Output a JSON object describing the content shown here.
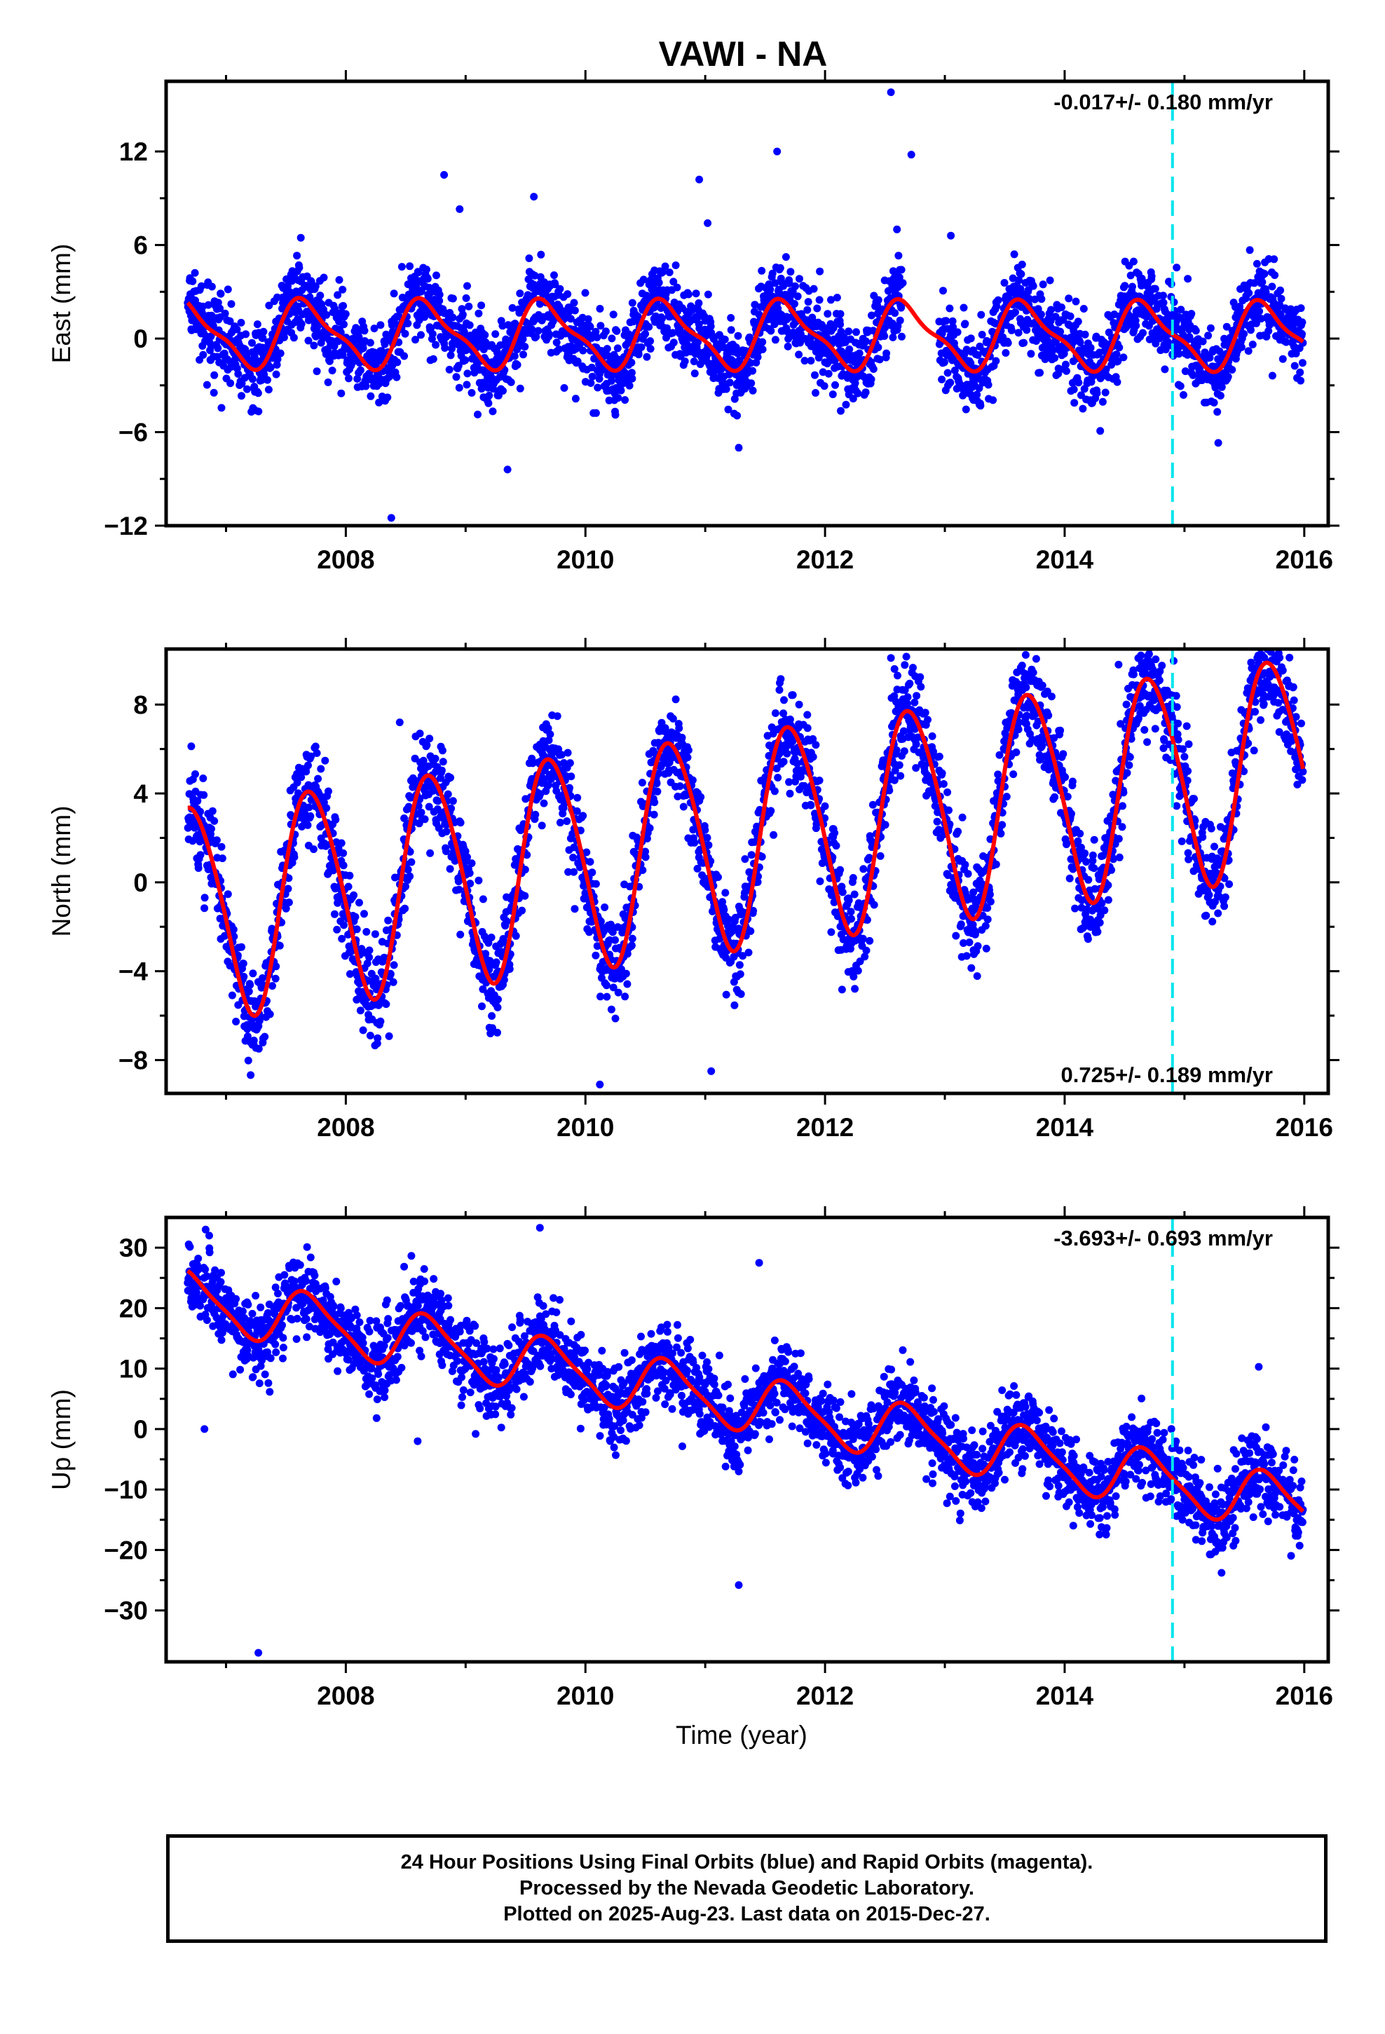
{
  "title": "VAWI - NA",
  "xlabel": "Time (year)",
  "colors": {
    "data": "#0000ff",
    "model": "#ff0000",
    "marker": "#00e5ee"
  },
  "caption": {
    "line1": "24 Hour Positions Using Final Orbits (blue) and Rapid Orbits (magenta).",
    "line2": "Processed by the Nevada Geodetic Laboratory.",
    "line3": "Plotted on 2025-Aug-23. Last data on 2015-Dec-27."
  },
  "chart_data": [
    {
      "type": "scatter",
      "ylabel": "East (mm)",
      "rate_label": "-0.017+/- 0.180 mm/yr",
      "rate_position": "top-right",
      "xlim": [
        2006.5,
        2016.2
      ],
      "ylim": [
        -12,
        16.5
      ],
      "yticks": [
        -12,
        -6,
        0,
        6,
        12
      ],
      "xticks": [
        2008,
        2010,
        2012,
        2014,
        2016
      ],
      "start": 2006.68,
      "end": 2015.99,
      "vertical_marker_x": 2014.9,
      "gaps": [
        [
          2012.65,
          2012.95
        ]
      ],
      "model": {
        "offset": 0.3,
        "trend": -0.017,
        "annual": [
          -1.8,
          -0.9
        ],
        "semiannual": [
          0.4,
          0.5
        ],
        "noise": 1.3
      },
      "outliers": [
        [
          2008.38,
          -11.5
        ],
        [
          2008.82,
          10.5
        ],
        [
          2008.95,
          8.3
        ],
        [
          2009.35,
          -8.4
        ],
        [
          2009.57,
          9.1
        ],
        [
          2010.95,
          10.2
        ],
        [
          2011.02,
          7.4
        ],
        [
          2011.28,
          -7
        ],
        [
          2011.6,
          12
        ],
        [
          2012.55,
          15.8
        ],
        [
          2012.72,
          11.8
        ],
        [
          2013.05,
          6.6
        ],
        [
          2012.6,
          7
        ]
      ]
    },
    {
      "type": "scatter",
      "ylabel": "North (mm)",
      "rate_label": "0.725+/- 0.189 mm/yr",
      "rate_position": "bottom-right",
      "xlim": [
        2006.5,
        2016.2
      ],
      "ylim": [
        -9.5,
        10.5
      ],
      "yticks": [
        -8,
        -4,
        0,
        4,
        8
      ],
      "xticks": [
        2008,
        2010,
        2012,
        2014,
        2016
      ],
      "start": 2006.68,
      "end": 2015.99,
      "vertical_marker_x": 2014.9,
      "gaps": [],
      "model": {
        "offset": -1.3,
        "trend": 0.725,
        "annual": [
          -4.7,
          -1.0
        ],
        "semiannual": [
          0.3,
          0.4
        ],
        "noise": 1.1
      },
      "outliers": [
        [
          2010.12,
          -9.1
        ],
        [
          2011.05,
          -8.5
        ],
        [
          2012.55,
          10.1
        ],
        [
          2012.58,
          9.6
        ],
        [
          2012.8,
          8.8
        ],
        [
          2008.45,
          7.2
        ],
        [
          2009.62,
          6.2
        ],
        [
          2014.45,
          9.8
        ]
      ]
    },
    {
      "type": "scatter",
      "ylabel": "Up (mm)",
      "rate_label": "-3.693+/- 0.693 mm/yr",
      "rate_position": "top-right",
      "xlim": [
        2006.5,
        2016.2
      ],
      "ylim": [
        -38.5,
        35
      ],
      "yticks": [
        -30,
        -20,
        -10,
        0,
        10,
        20,
        30
      ],
      "xticks": [
        2008,
        2010,
        2012,
        2014,
        2016
      ],
      "start": 2006.68,
      "end": 2015.99,
      "vertical_marker_x": 2014.9,
      "gaps": [],
      "model": {
        "offset": 21.5,
        "trend": -3.693,
        "annual": [
          -4.2,
          -1.5
        ],
        "semiannual": [
          0.8,
          0.6
        ],
        "noise": 3.2
      },
      "outliers": [
        [
          2007.27,
          -37
        ],
        [
          2006.83,
          33
        ],
        [
          2006.86,
          32
        ],
        [
          2009.62,
          33.3
        ],
        [
          2011.45,
          27.5
        ],
        [
          2011.28,
          -25.8
        ],
        [
          2006.82,
          0
        ],
        [
          2008.6,
          -2
        ],
        [
          2015.62,
          10.3
        ]
      ]
    }
  ]
}
